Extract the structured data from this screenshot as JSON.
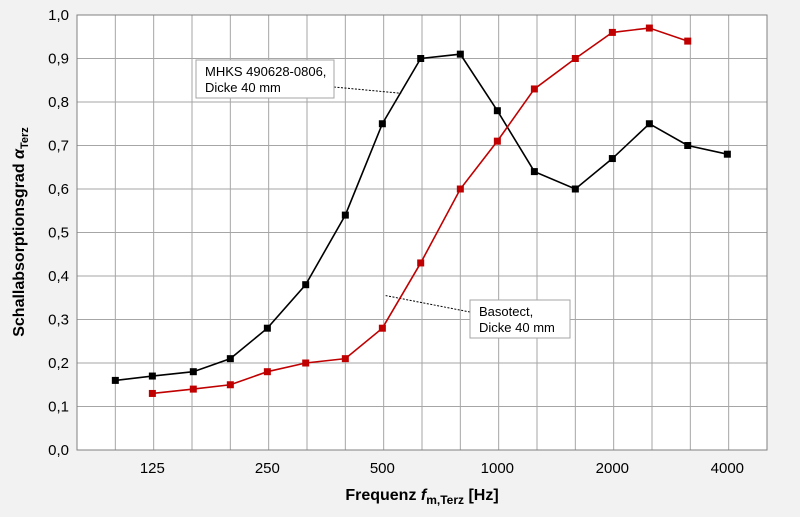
{
  "chart_data": {
    "type": "line",
    "title": "",
    "xlabel": {
      "main": "Frequenz ",
      "symbol": "f",
      "subscript": "m,Terz",
      "unit": " [Hz]"
    },
    "ylabel": {
      "main": "Schallabsorptionsgrad ",
      "symbol": "α",
      "subscript": "Terz"
    },
    "x_scale": "log2 (third-octave bands)",
    "x_tick_labels": [
      {
        "x": 125,
        "label": "125"
      },
      {
        "x": 250,
        "label": "250"
      },
      {
        "x": 500,
        "label": "500"
      },
      {
        "x": 1000,
        "label": "1000"
      },
      {
        "x": 2000,
        "label": "2000"
      },
      {
        "x": 4000,
        "label": "4000"
      }
    ],
    "ylim": [
      0,
      1.0
    ],
    "y_ticks": [
      {
        "v": 0.0,
        "label": "0,0"
      },
      {
        "v": 0.1,
        "label": "0,1"
      },
      {
        "v": 0.2,
        "label": "0,2"
      },
      {
        "v": 0.3,
        "label": "0,3"
      },
      {
        "v": 0.4,
        "label": "0,4"
      },
      {
        "v": 0.5,
        "label": "0,5"
      },
      {
        "v": 0.6,
        "label": "0,6"
      },
      {
        "v": 0.7,
        "label": "0,7"
      },
      {
        "v": 0.8,
        "label": "0,8"
      },
      {
        "v": 0.9,
        "label": "0,9"
      },
      {
        "v": 1.0,
        "label": "1,0"
      }
    ],
    "grid": true,
    "series": [
      {
        "name": "MHKS 490628-0806, Dicke 40 mm",
        "label_lines": [
          "MHKS 490628-0806,",
          "Dicke 40 mm"
        ],
        "color": "#000000",
        "x": [
          100,
          125,
          160,
          200,
          250,
          315,
          400,
          500,
          630,
          800,
          1000,
          1250,
          1600,
          2000,
          2500,
          3150,
          4000
        ],
        "y": [
          0.16,
          0.17,
          0.18,
          0.21,
          0.28,
          0.38,
          0.54,
          0.75,
          0.9,
          0.91,
          0.78,
          0.64,
          0.6,
          0.67,
          0.75,
          0.7,
          0.68
        ]
      },
      {
        "name": "Basotect, Dicke 40 mm",
        "label_lines": [
          "Basotect,",
          "Dicke 40 mm"
        ],
        "color": "#c00000",
        "x": [
          125,
          160,
          200,
          250,
          315,
          400,
          500,
          630,
          800,
          1000,
          1250,
          1600,
          2000,
          2500,
          3150
        ],
        "y": [
          0.13,
          0.14,
          0.15,
          0.18,
          0.2,
          0.21,
          0.28,
          0.43,
          0.6,
          0.71,
          0.83,
          0.9,
          0.96,
          0.97,
          0.94
        ]
      }
    ]
  }
}
